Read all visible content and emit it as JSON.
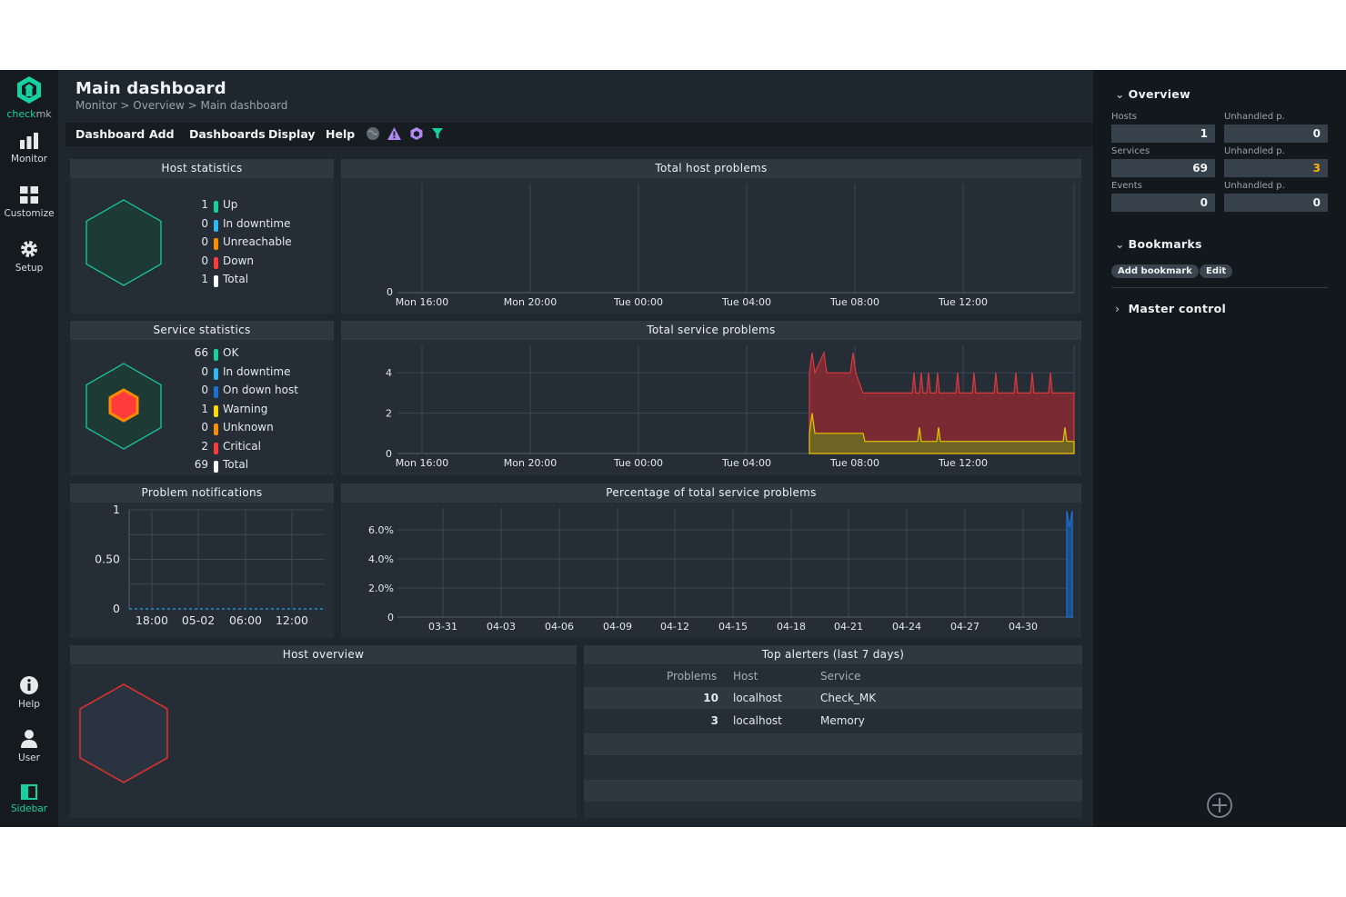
{
  "nav": {
    "logo_text_a": "check",
    "logo_text_b": "mk",
    "monitor": "Monitor",
    "customize": "Customize",
    "setup": "Setup",
    "help": "Help",
    "user": "User",
    "sidebar": "Sidebar"
  },
  "header": {
    "title": "Main dashboard",
    "breadcrumb": "Monitor > Overview > Main dashboard",
    "menu": [
      "Dashboard",
      "Add",
      "Dashboards",
      "Display",
      "Help"
    ]
  },
  "host_statistics": {
    "title": "Host statistics",
    "rows": [
      {
        "count": "1",
        "label": "Up",
        "color": "#15d1a0"
      },
      {
        "count": "0",
        "label": "In downtime",
        "color": "#2fb9f4"
      },
      {
        "count": "0",
        "label": "Unreachable",
        "color": "#ff8c00"
      },
      {
        "count": "0",
        "label": "Down",
        "color": "#ff3b3b"
      },
      {
        "count": "1",
        "label": "Total",
        "color": "#ffffff"
      }
    ]
  },
  "service_statistics": {
    "title": "Service statistics",
    "rows": [
      {
        "count": "66",
        "label": "OK",
        "color": "#15d1a0"
      },
      {
        "count": "0",
        "label": "In downtime",
        "color": "#2fb9f4"
      },
      {
        "count": "0",
        "label": "On down host",
        "color": "#1e6fd2"
      },
      {
        "count": "1",
        "label": "Warning",
        "color": "#ffd703"
      },
      {
        "count": "0",
        "label": "Unknown",
        "color": "#ff8c00"
      },
      {
        "count": "2",
        "label": "Critical",
        "color": "#ff3b3b"
      },
      {
        "count": "69",
        "label": "Total",
        "color": "#ffffff"
      }
    ]
  },
  "problem_notifications": {
    "title": "Problem notifications"
  },
  "total_host_problems": {
    "title": "Total host problems"
  },
  "total_service_problems": {
    "title": "Total service problems"
  },
  "percentage_service_problems": {
    "title": "Percentage of total service problems"
  },
  "host_overview": {
    "title": "Host overview"
  },
  "top_alerters": {
    "title": "Top alerters (last 7 days)",
    "columns": [
      "Problems",
      "Host",
      "Service"
    ],
    "rows": [
      {
        "problems": "10",
        "host": "localhost",
        "service": "Check_MK"
      },
      {
        "problems": "3",
        "host": "localhost",
        "service": "Memory"
      }
    ]
  },
  "chart_data": [
    {
      "id": "total_host_problems",
      "type": "area",
      "title": "Total host problems",
      "x_ticks": [
        "Mon 16:00",
        "Mon 20:00",
        "Tue 00:00",
        "Tue 04:00",
        "Tue 08:00",
        "Tue 12:00"
      ],
      "y_ticks": [
        "0"
      ],
      "series": [],
      "grid": true
    },
    {
      "id": "total_service_problems",
      "type": "area",
      "title": "Total service problems",
      "x_ticks": [
        "Mon 16:00",
        "Mon 20:00",
        "Tue 00:00",
        "Tue 04:00",
        "Tue 08:00",
        "Tue 12:00"
      ],
      "y_ticks": [
        "0",
        "2",
        "4"
      ],
      "ylim": [
        0,
        5
      ],
      "x": [
        "Tue 07:00",
        "Tue 07:15",
        "Tue 07:30",
        "Tue 08:00",
        "Tue 09:00",
        "Tue 10:00",
        "Tue 11:00",
        "Tue 12:00",
        "Tue 13:00",
        "Tue 14:00"
      ],
      "series": [
        {
          "color": "#c8b300",
          "values": [
            1,
            2,
            1,
            1,
            1,
            1,
            1,
            1,
            1,
            1
          ]
        },
        {
          "color": "#b32f36",
          "values": [
            3,
            4,
            3,
            3,
            3,
            3,
            3,
            3,
            3,
            3
          ]
        }
      ],
      "grid": true
    },
    {
      "id": "problem_notifications",
      "type": "line",
      "x_ticks": [
        "18:00",
        "05-02",
        "06:00",
        "12:00"
      ],
      "y_ticks": [
        "0",
        "0.50",
        "1"
      ],
      "ylim": [
        0,
        1
      ],
      "series": [
        {
          "color": "#1e90c8",
          "values": [
            0,
            0,
            0,
            0,
            0,
            0,
            0,
            0
          ]
        }
      ],
      "grid": true
    },
    {
      "id": "percentage_service_problems",
      "type": "area",
      "title": "Percentage of total service problems",
      "x_ticks": [
        "03-31",
        "04-03",
        "04-06",
        "04-09",
        "04-12",
        "04-15",
        "04-18",
        "04-21",
        "04-24",
        "04-27",
        "04-30"
      ],
      "y_ticks": [
        "0",
        "2.0%",
        "4.0%",
        "6.0%"
      ],
      "ylim": [
        0,
        7.5
      ],
      "series": [
        {
          "color": "#1e6fd2",
          "values": [
            7.3,
            6.2,
            7.3
          ]
        }
      ],
      "grid": true
    }
  ],
  "sidebar": {
    "overview": {
      "title": "Overview",
      "hosts_label": "Hosts",
      "hosts": "1",
      "unhandled_label_1": "Unhandled p.",
      "hosts_unhandled": "0",
      "services_label": "Services",
      "services": "69",
      "unhandled_label_2": "Unhandled p.",
      "services_unhandled": "3",
      "events_label": "Events",
      "events": "0",
      "unhandled_label_3": "Unhandled p.",
      "events_unhandled": "0"
    },
    "bookmarks": {
      "title": "Bookmarks",
      "add": "Add bookmark",
      "edit": "Edit"
    },
    "master_control": {
      "title": "Master control"
    }
  }
}
